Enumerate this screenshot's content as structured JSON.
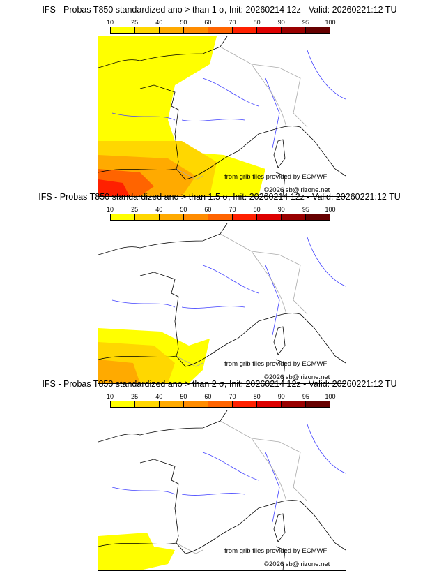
{
  "colorbar": {
    "ticks": [
      "10",
      "25",
      "40",
      "50",
      "60",
      "70",
      "80",
      "90",
      "95",
      "100"
    ],
    "colors": [
      "#ffff00",
      "#ffd700",
      "#ffaa00",
      "#ff8c00",
      "#ff6400",
      "#ff2000",
      "#dd0000",
      "#990000",
      "#660000"
    ]
  },
  "panels": [
    {
      "title": "IFS - Probas T850  standardized ano > than 1 σ, Init: 20260214 12z - Valid: 20260221:12 TU",
      "level": 1
    },
    {
      "title": "IFS - Probas T850  standardized ano > than 1.5 σ, Init: 20260214 12z - Valid: 20260221:12 TU",
      "level": 2
    },
    {
      "title": "IFS - Probas T850  standardized ano > than 2 σ, Init: 20260214 12z - Valid: 20260221:12 TU",
      "level": 3
    }
  ],
  "credits": {
    "source": "from grib files provided by ECMWF",
    "copyright": "©2026 sb@irizone.net"
  }
}
